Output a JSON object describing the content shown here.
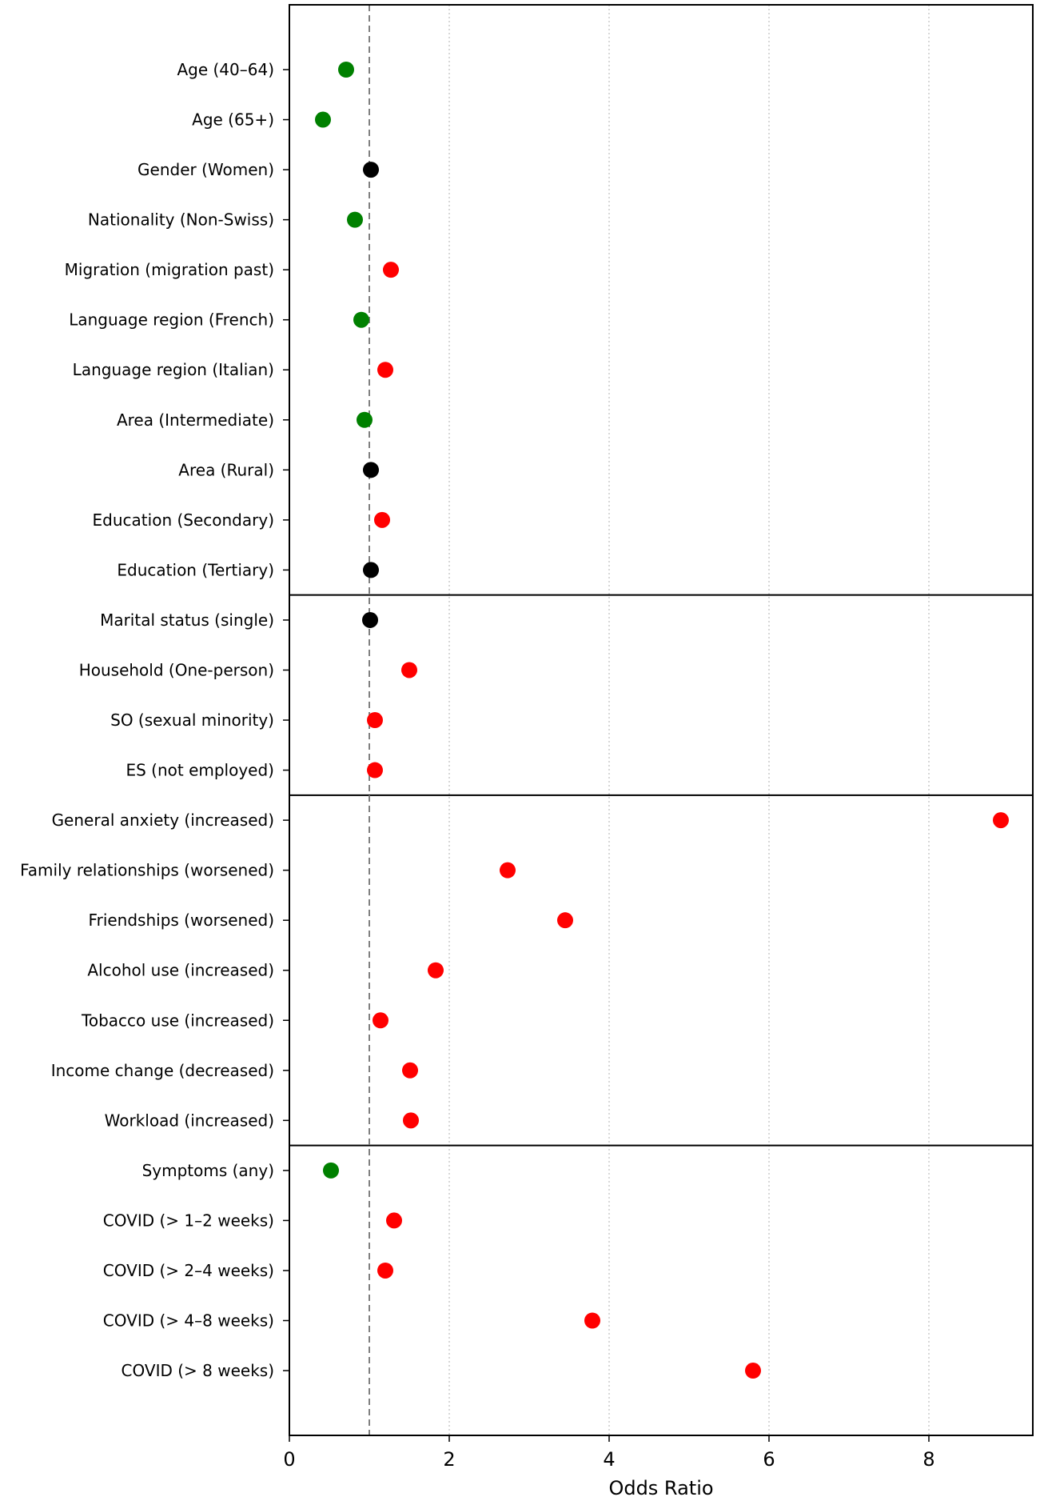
{
  "chart_data": {
    "type": "scatter",
    "title": "",
    "xlabel": "Odds Ratio",
    "ylabel": "",
    "xlim": [
      0,
      9.3
    ],
    "x_ticks": [
      0,
      2,
      4,
      6,
      8
    ],
    "grid": "vertical dotted at x ticks",
    "reference_line": {
      "x": 1,
      "style": "dashed",
      "color": "#808080"
    },
    "group_separators_after": [
      "Education (Tertiary)",
      "ES (not employed)",
      "Workload (increased)"
    ],
    "colors": {
      "lower": "#008000",
      "neutral": "#000000",
      "higher": "#ff0000"
    },
    "points": [
      {
        "label": "Age (40–64)",
        "value": 0.71,
        "color": "#008000"
      },
      {
        "label": "Age (65+)",
        "value": 0.42,
        "color": "#008000"
      },
      {
        "label": "Gender (Women)",
        "value": 1.02,
        "color": "#000000"
      },
      {
        "label": "Nationality (Non-Swiss)",
        "value": 0.82,
        "color": "#008000"
      },
      {
        "label": "Migration (migration past)",
        "value": 1.27,
        "color": "#ff0000"
      },
      {
        "label": "Language region (French)",
        "value": 0.9,
        "color": "#008000"
      },
      {
        "label": "Language region (Italian)",
        "value": 1.2,
        "color": "#ff0000"
      },
      {
        "label": "Area (Intermediate)",
        "value": 0.94,
        "color": "#008000"
      },
      {
        "label": "Area (Rural)",
        "value": 1.02,
        "color": "#000000"
      },
      {
        "label": "Education (Secondary)",
        "value": 1.16,
        "color": "#ff0000"
      },
      {
        "label": "Education (Tertiary)",
        "value": 1.02,
        "color": "#000000"
      },
      {
        "label": "Marital status (single)",
        "value": 1.01,
        "color": "#000000"
      },
      {
        "label": "Household (One-person)",
        "value": 1.5,
        "color": "#ff0000"
      },
      {
        "label": "SO (sexual minority)",
        "value": 1.07,
        "color": "#ff0000"
      },
      {
        "label": "ES (not employed)",
        "value": 1.07,
        "color": "#ff0000"
      },
      {
        "label": "General anxiety (increased)",
        "value": 8.9,
        "color": "#ff0000"
      },
      {
        "label": "Family relationships (worsened)",
        "value": 2.73,
        "color": "#ff0000"
      },
      {
        "label": "Friendships (worsened)",
        "value": 3.45,
        "color": "#ff0000"
      },
      {
        "label": "Alcohol use (increased)",
        "value": 1.83,
        "color": "#ff0000"
      },
      {
        "label": "Tobacco use (increased)",
        "value": 1.14,
        "color": "#ff0000"
      },
      {
        "label": "Income change (decreased)",
        "value": 1.51,
        "color": "#ff0000"
      },
      {
        "label": "Workload (increased)",
        "value": 1.52,
        "color": "#ff0000"
      },
      {
        "label": "Symptoms (any)",
        "value": 0.52,
        "color": "#008000"
      },
      {
        "label": "COVID (> 1–2 weeks)",
        "value": 1.31,
        "color": "#ff0000"
      },
      {
        "label": "COVID (> 2–4 weeks)",
        "value": 1.2,
        "color": "#ff0000"
      },
      {
        "label": "COVID (> 4–8 weeks)",
        "value": 3.79,
        "color": "#ff0000"
      },
      {
        "label": "COVID (> 8 weeks)",
        "value": 5.8,
        "color": "#ff0000"
      }
    ]
  }
}
